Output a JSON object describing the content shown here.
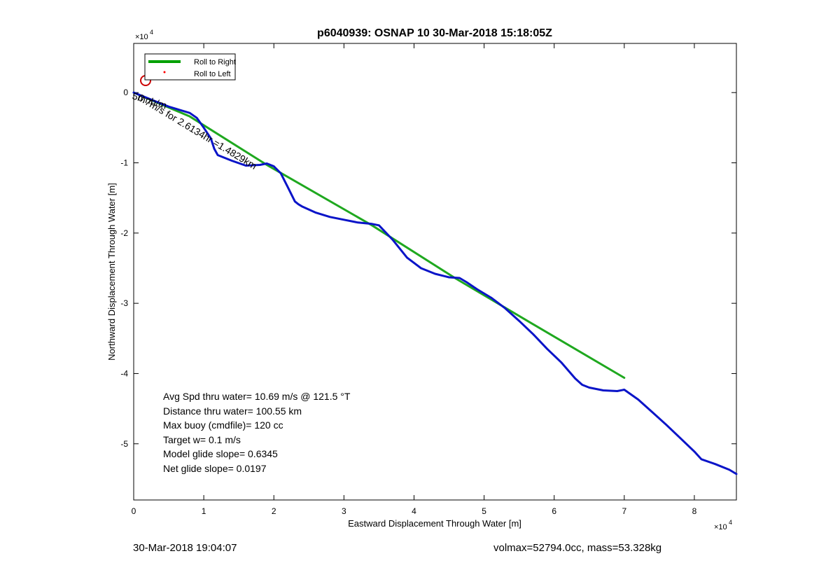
{
  "figure": {
    "footer_left": "30-Mar-2018 19:04:07",
    "footer_right": "volmax=52794.0cc, mass=53.328kg"
  },
  "chart_data": {
    "type": "line",
    "title": "p6040939: OSNAP 10 30-Mar-2018 15:18:05Z",
    "xlabel": "Eastward Displacement Through Water [m]",
    "ylabel": "Northward Displacement Through Water [m]",
    "xlim": [
      0,
      86000
    ],
    "ylim": [
      -58000,
      7000
    ],
    "x_exponent_label": "×10",
    "x_exponent_power": "4",
    "y_exponent_label": "×10",
    "y_exponent_power": "4",
    "xticks": [
      0,
      10000,
      20000,
      30000,
      40000,
      50000,
      60000,
      70000,
      80000
    ],
    "xtick_labels": [
      "0",
      "1",
      "2",
      "3",
      "4",
      "5",
      "6",
      "7",
      "8"
    ],
    "yticks": [
      0,
      -10000,
      -20000,
      -30000,
      -40000,
      -50000
    ],
    "ytick_labels": [
      "0",
      "-1",
      "-2",
      "-3",
      "-4",
      "-5"
    ],
    "grid": false,
    "legend": {
      "placement": "top-left",
      "entries": [
        {
          "label": "Roll to Right",
          "color": "#00a000",
          "marker": "line"
        },
        {
          "label": "Roll to Left",
          "color": "#ff0000",
          "marker": "dot"
        }
      ]
    },
    "series": [
      {
        "name": "Roll to Right",
        "color": "#1fa81f",
        "x": [
          0,
          8000,
          19000,
          34000,
          46000,
          56000,
          70000
        ],
        "y": [
          0,
          -3400,
          -10300,
          -18900,
          -26500,
          -32400,
          -40600
        ]
      },
      {
        "color": "#0a14c8",
        "x": [
          0,
          3000,
          5000,
          7000,
          8000,
          9000,
          10000,
          11000,
          11500,
          12000,
          14000,
          16000,
          18000,
          19000,
          20000,
          21000,
          22000,
          23000,
          23500,
          24000,
          26000,
          28000,
          30000,
          32000,
          34000,
          35000,
          37000,
          39000,
          41000,
          43000,
          45000,
          46500,
          47500,
          49000,
          51000,
          53000,
          55000,
          57000,
          59000,
          61000,
          63000,
          64000,
          65000,
          67000,
          69000,
          70000,
          72000,
          74000,
          76000,
          78000,
          80000,
          81000,
          83000,
          85000,
          86000
        ],
        "y": [
          0,
          -1200,
          -2000,
          -2600,
          -2900,
          -3600,
          -5000,
          -6500,
          -8000,
          -8900,
          -9700,
          -10400,
          -10300,
          -10100,
          -10500,
          -11500,
          -13500,
          -15500,
          -15900,
          -16200,
          -17100,
          -17700,
          -18100,
          -18500,
          -18700,
          -18900,
          -21000,
          -23500,
          -25000,
          -25800,
          -26300,
          -26400,
          -27000,
          -28000,
          -29200,
          -30700,
          -32500,
          -34400,
          -36500,
          -38400,
          -40700,
          -41600,
          -42000,
          -42400,
          -42500,
          -42300,
          -43700,
          -45500,
          -47300,
          -49200,
          -51100,
          -52200,
          -52900,
          -53700,
          -54300
        ]
      }
    ],
    "annotations": {
      "marker_circle": {
        "x": 1800,
        "y": 1800,
        "color": "#cc0000"
      },
      "diagonal_text": "0.7m/s for 2.6134hr =1.4829km",
      "overlap_text": "5mnb/m",
      "stats": [
        "Avg Spd thru water= 10.69 m/s @ 121.5 °T",
        "Distance thru water= 100.55 km",
        "Max buoy (cmdfile)= 120 cc",
        "Target w= 0.1 m/s",
        "Model glide slope= 0.6345",
        "Net glide slope= 0.0197"
      ]
    }
  }
}
